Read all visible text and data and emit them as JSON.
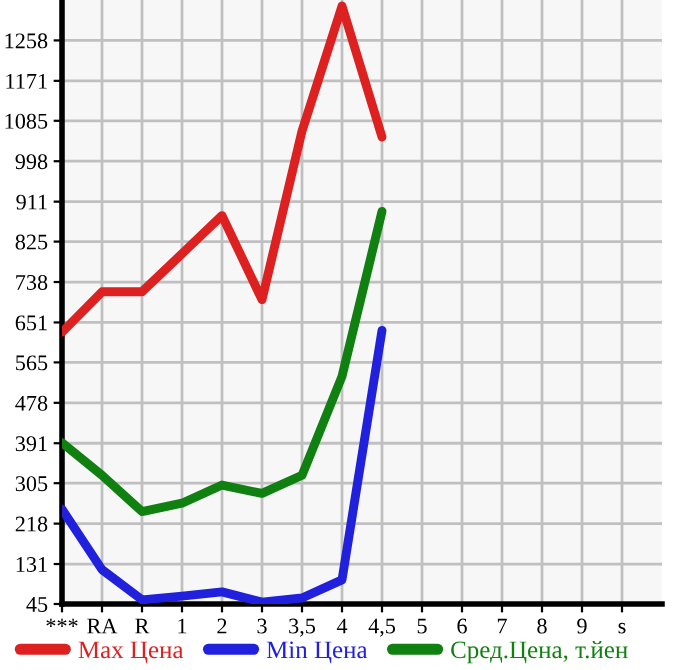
{
  "chart_data": {
    "type": "line",
    "categories": [
      "***",
      "RA",
      "R",
      "1",
      "2",
      "3",
      "3,5",
      "4",
      "4,5",
      "5",
      "6",
      "7",
      "8",
      "9",
      "s"
    ],
    "series": [
      {
        "name": "Max Цена",
        "color": "#dd2020",
        "values": [
          630,
          717,
          717,
          799,
          881,
          700,
          1063,
          1332,
          1050,
          null,
          null,
          null,
          null,
          null,
          null
        ]
      },
      {
        "name": "Min Цена",
        "color": "#2020dd",
        "values": [
          249,
          119,
          54,
          62,
          71,
          49,
          58,
          97,
          634,
          null,
          null,
          null,
          null,
          null,
          null
        ]
      },
      {
        "name": "Сред.Цена, т.йен",
        "color": "#108010",
        "values": [
          392,
          322,
          244,
          262,
          301,
          283,
          322,
          535,
          890,
          null,
          null,
          null,
          null,
          null,
          null
        ]
      }
    ],
    "ylim": [
      45,
      1345
    ],
    "yticks": [
      45,
      131,
      218,
      305,
      391,
      478,
      565,
      651,
      738,
      825,
      911,
      998,
      1085,
      1171,
      1258
    ],
    "grid": true,
    "legend": "bottom",
    "marker": "none",
    "line_style": "solid"
  }
}
